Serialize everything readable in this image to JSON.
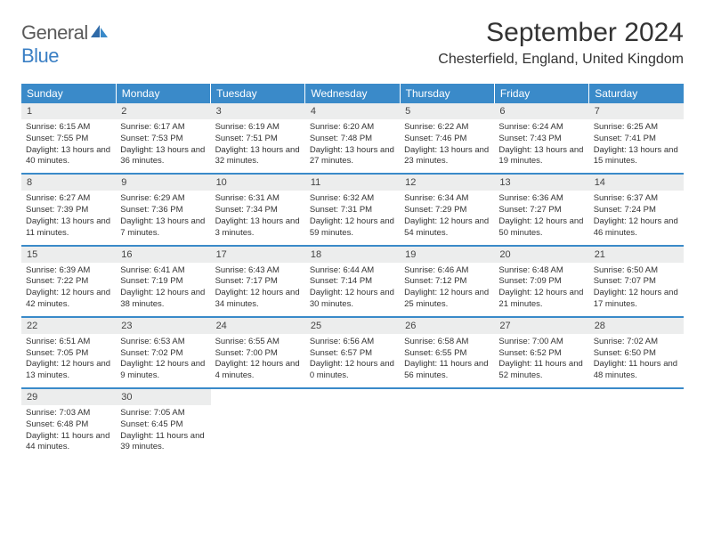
{
  "logo": {
    "text1": "General",
    "text2": "Blue"
  },
  "title": "September 2024",
  "location": "Chesterfield, England, United Kingdom",
  "colors": {
    "header_bg": "#3a8ac9",
    "header_text": "#ffffff",
    "daynum_bg": "#eceded",
    "row_divider": "#3a8ac9",
    "logo_blue": "#3a7fc4",
    "logo_gray": "#5a5a5a"
  },
  "weekdays": [
    "Sunday",
    "Monday",
    "Tuesday",
    "Wednesday",
    "Thursday",
    "Friday",
    "Saturday"
  ],
  "weeks": [
    [
      {
        "day": "1",
        "sunrise": "Sunrise: 6:15 AM",
        "sunset": "Sunset: 7:55 PM",
        "daylight": "Daylight: 13 hours and 40 minutes."
      },
      {
        "day": "2",
        "sunrise": "Sunrise: 6:17 AM",
        "sunset": "Sunset: 7:53 PM",
        "daylight": "Daylight: 13 hours and 36 minutes."
      },
      {
        "day": "3",
        "sunrise": "Sunrise: 6:19 AM",
        "sunset": "Sunset: 7:51 PM",
        "daylight": "Daylight: 13 hours and 32 minutes."
      },
      {
        "day": "4",
        "sunrise": "Sunrise: 6:20 AM",
        "sunset": "Sunset: 7:48 PM",
        "daylight": "Daylight: 13 hours and 27 minutes."
      },
      {
        "day": "5",
        "sunrise": "Sunrise: 6:22 AM",
        "sunset": "Sunset: 7:46 PM",
        "daylight": "Daylight: 13 hours and 23 minutes."
      },
      {
        "day": "6",
        "sunrise": "Sunrise: 6:24 AM",
        "sunset": "Sunset: 7:43 PM",
        "daylight": "Daylight: 13 hours and 19 minutes."
      },
      {
        "day": "7",
        "sunrise": "Sunrise: 6:25 AM",
        "sunset": "Sunset: 7:41 PM",
        "daylight": "Daylight: 13 hours and 15 minutes."
      }
    ],
    [
      {
        "day": "8",
        "sunrise": "Sunrise: 6:27 AM",
        "sunset": "Sunset: 7:39 PM",
        "daylight": "Daylight: 13 hours and 11 minutes."
      },
      {
        "day": "9",
        "sunrise": "Sunrise: 6:29 AM",
        "sunset": "Sunset: 7:36 PM",
        "daylight": "Daylight: 13 hours and 7 minutes."
      },
      {
        "day": "10",
        "sunrise": "Sunrise: 6:31 AM",
        "sunset": "Sunset: 7:34 PM",
        "daylight": "Daylight: 13 hours and 3 minutes."
      },
      {
        "day": "11",
        "sunrise": "Sunrise: 6:32 AM",
        "sunset": "Sunset: 7:31 PM",
        "daylight": "Daylight: 12 hours and 59 minutes."
      },
      {
        "day": "12",
        "sunrise": "Sunrise: 6:34 AM",
        "sunset": "Sunset: 7:29 PM",
        "daylight": "Daylight: 12 hours and 54 minutes."
      },
      {
        "day": "13",
        "sunrise": "Sunrise: 6:36 AM",
        "sunset": "Sunset: 7:27 PM",
        "daylight": "Daylight: 12 hours and 50 minutes."
      },
      {
        "day": "14",
        "sunrise": "Sunrise: 6:37 AM",
        "sunset": "Sunset: 7:24 PM",
        "daylight": "Daylight: 12 hours and 46 minutes."
      }
    ],
    [
      {
        "day": "15",
        "sunrise": "Sunrise: 6:39 AM",
        "sunset": "Sunset: 7:22 PM",
        "daylight": "Daylight: 12 hours and 42 minutes."
      },
      {
        "day": "16",
        "sunrise": "Sunrise: 6:41 AM",
        "sunset": "Sunset: 7:19 PM",
        "daylight": "Daylight: 12 hours and 38 minutes."
      },
      {
        "day": "17",
        "sunrise": "Sunrise: 6:43 AM",
        "sunset": "Sunset: 7:17 PM",
        "daylight": "Daylight: 12 hours and 34 minutes."
      },
      {
        "day": "18",
        "sunrise": "Sunrise: 6:44 AM",
        "sunset": "Sunset: 7:14 PM",
        "daylight": "Daylight: 12 hours and 30 minutes."
      },
      {
        "day": "19",
        "sunrise": "Sunrise: 6:46 AM",
        "sunset": "Sunset: 7:12 PM",
        "daylight": "Daylight: 12 hours and 25 minutes."
      },
      {
        "day": "20",
        "sunrise": "Sunrise: 6:48 AM",
        "sunset": "Sunset: 7:09 PM",
        "daylight": "Daylight: 12 hours and 21 minutes."
      },
      {
        "day": "21",
        "sunrise": "Sunrise: 6:50 AM",
        "sunset": "Sunset: 7:07 PM",
        "daylight": "Daylight: 12 hours and 17 minutes."
      }
    ],
    [
      {
        "day": "22",
        "sunrise": "Sunrise: 6:51 AM",
        "sunset": "Sunset: 7:05 PM",
        "daylight": "Daylight: 12 hours and 13 minutes."
      },
      {
        "day": "23",
        "sunrise": "Sunrise: 6:53 AM",
        "sunset": "Sunset: 7:02 PM",
        "daylight": "Daylight: 12 hours and 9 minutes."
      },
      {
        "day": "24",
        "sunrise": "Sunrise: 6:55 AM",
        "sunset": "Sunset: 7:00 PM",
        "daylight": "Daylight: 12 hours and 4 minutes."
      },
      {
        "day": "25",
        "sunrise": "Sunrise: 6:56 AM",
        "sunset": "Sunset: 6:57 PM",
        "daylight": "Daylight: 12 hours and 0 minutes."
      },
      {
        "day": "26",
        "sunrise": "Sunrise: 6:58 AM",
        "sunset": "Sunset: 6:55 PM",
        "daylight": "Daylight: 11 hours and 56 minutes."
      },
      {
        "day": "27",
        "sunrise": "Sunrise: 7:00 AM",
        "sunset": "Sunset: 6:52 PM",
        "daylight": "Daylight: 11 hours and 52 minutes."
      },
      {
        "day": "28",
        "sunrise": "Sunrise: 7:02 AM",
        "sunset": "Sunset: 6:50 PM",
        "daylight": "Daylight: 11 hours and 48 minutes."
      }
    ],
    [
      {
        "day": "29",
        "sunrise": "Sunrise: 7:03 AM",
        "sunset": "Sunset: 6:48 PM",
        "daylight": "Daylight: 11 hours and 44 minutes."
      },
      {
        "day": "30",
        "sunrise": "Sunrise: 7:05 AM",
        "sunset": "Sunset: 6:45 PM",
        "daylight": "Daylight: 11 hours and 39 minutes."
      },
      {
        "empty": true
      },
      {
        "empty": true
      },
      {
        "empty": true
      },
      {
        "empty": true
      },
      {
        "empty": true
      }
    ]
  ]
}
